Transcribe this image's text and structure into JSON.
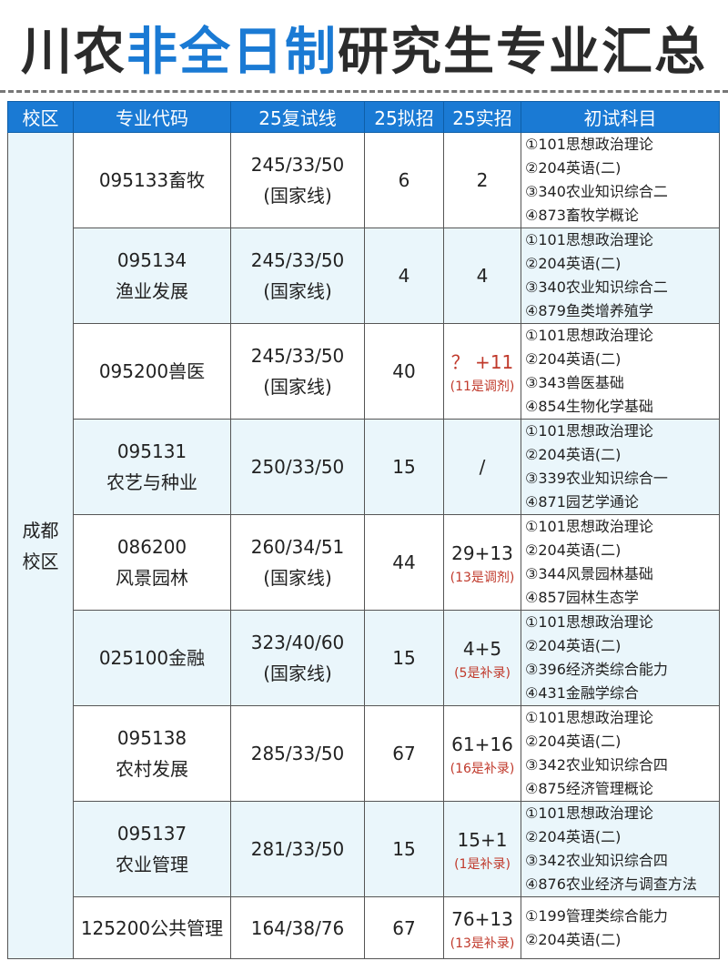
{
  "title": {
    "part1": "川农",
    "highlight": "非全日制",
    "part2": "研究生专业汇总"
  },
  "colors": {
    "accent": "#1a7ad4",
    "alt_row": "#eaf6fb",
    "note": "#c0392b"
  },
  "headers": [
    "校区",
    "专业代码",
    "25复试线",
    "25拟招",
    "25实招",
    "初试科目"
  ],
  "campus": "成都\n校区",
  "rows": [
    {
      "major": [
        "095133畜牧"
      ],
      "line": [
        "245/33/50",
        "(国家线)"
      ],
      "plan": "6",
      "actual": "2",
      "note": "",
      "subjects": [
        "①101思想政治理论",
        "②204英语(二)",
        "③340农业知识综合二",
        "④873畜牧学概论"
      ]
    },
    {
      "major": [
        "095134",
        "渔业发展"
      ],
      "line": [
        "245/33/50",
        "(国家线)"
      ],
      "plan": "4",
      "actual": "4",
      "note": "",
      "subjects": [
        "①101思想政治理论",
        "②204英语(二)",
        "③340农业知识综合二",
        "④879鱼类增养殖学"
      ]
    },
    {
      "major": [
        "095200兽医"
      ],
      "line": [
        "245/33/50",
        "(国家线)"
      ],
      "plan": "40",
      "actual": "？ +11",
      "note": "(11是调剂)",
      "subjects": [
        "①101思想政治理论",
        "②204英语(二)",
        "③343兽医基础",
        "④854生物化学基础"
      ]
    },
    {
      "major": [
        "095131",
        "农艺与种业"
      ],
      "line": [
        "250/33/50"
      ],
      "plan": "15",
      "actual": "/",
      "note": "",
      "subjects": [
        "①101思想政治理论",
        "②204英语(二)",
        "③339农业知识综合一",
        "④871园艺学通论"
      ]
    },
    {
      "major": [
        "086200",
        "风景园林"
      ],
      "line": [
        "260/34/51",
        "(国家线)"
      ],
      "plan": "44",
      "actual": "29+13",
      "note": "(13是调剂)",
      "subjects": [
        "①101思想政治理论",
        "②204英语(二)",
        "③344风景园林基础",
        "④857园林生态学"
      ]
    },
    {
      "major": [
        "025100金融"
      ],
      "line": [
        "323/40/60",
        "(国家线)"
      ],
      "plan": "15",
      "actual": "4+5",
      "note": "(5是补录)",
      "subjects": [
        "①101思想政治理论",
        "②204英语(二)",
        "③396经济类综合能力",
        "④431金融学综合"
      ]
    },
    {
      "major": [
        "095138",
        "农村发展"
      ],
      "line": [
        "285/33/50"
      ],
      "plan": "67",
      "actual": "61+16",
      "note": "(16是补录)",
      "subjects": [
        "①101思想政治理论",
        "②204英语(二)",
        "③342农业知识综合四",
        "④875经济管理概论"
      ]
    },
    {
      "major": [
        "095137",
        "农业管理"
      ],
      "line": [
        "281/33/50"
      ],
      "plan": "15",
      "actual": "15+1",
      "note": "(1是补录)",
      "subjects": [
        "①101思想政治理论",
        "②204英语(二)",
        "③342农业知识综合四",
        "④876农业经济与调查方法"
      ]
    },
    {
      "major": [
        "125200公共管理"
      ],
      "line": [
        "164/38/76"
      ],
      "plan": "67",
      "actual": "76+13",
      "note": "(13是补录)",
      "subjects": [
        "①199管理类综合能力",
        "②204英语(二)"
      ]
    }
  ]
}
